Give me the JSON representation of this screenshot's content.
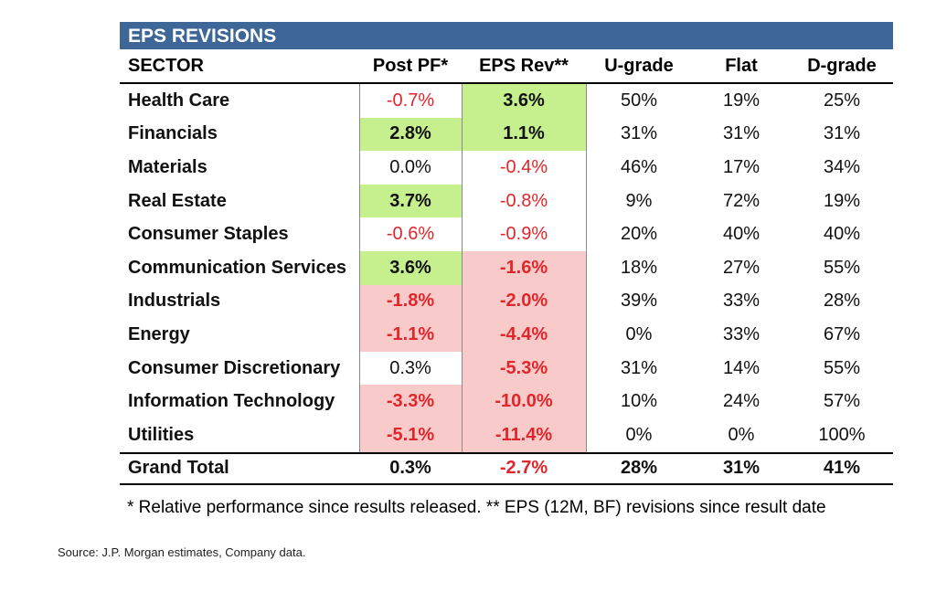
{
  "chart_data": {
    "type": "table",
    "title": "EPS REVISIONS",
    "columns": [
      "SECTOR",
      "Post PF*",
      "EPS Rev**",
      "U-grade",
      "Flat",
      "D-grade"
    ],
    "rows": [
      {
        "sector": "Health Care",
        "post_pf": "-0.7%",
        "eps_rev": "3.6%",
        "u_grade": "50%",
        "flat": "19%",
        "d_grade": "25%",
        "post_pf_value": -0.7,
        "eps_rev_value": 3.6,
        "post_pf_fill": "none",
        "eps_rev_fill": "green",
        "post_pf_bold": false,
        "eps_rev_bold": true
      },
      {
        "sector": "Financials",
        "post_pf": "2.8%",
        "eps_rev": "1.1%",
        "u_grade": "31%",
        "flat": "31%",
        "d_grade": "31%",
        "post_pf_value": 2.8,
        "eps_rev_value": 1.1,
        "post_pf_fill": "green",
        "eps_rev_fill": "green",
        "post_pf_bold": true,
        "eps_rev_bold": true
      },
      {
        "sector": "Materials",
        "post_pf": "0.0%",
        "eps_rev": "-0.4%",
        "u_grade": "46%",
        "flat": "17%",
        "d_grade": "34%",
        "post_pf_value": 0.0,
        "eps_rev_value": -0.4,
        "post_pf_fill": "none",
        "eps_rev_fill": "none",
        "post_pf_bold": false,
        "eps_rev_bold": false
      },
      {
        "sector": "Real Estate",
        "post_pf": "3.7%",
        "eps_rev": "-0.8%",
        "u_grade": "9%",
        "flat": "72%",
        "d_grade": "19%",
        "post_pf_value": 3.7,
        "eps_rev_value": -0.8,
        "post_pf_fill": "green",
        "eps_rev_fill": "none",
        "post_pf_bold": true,
        "eps_rev_bold": false
      },
      {
        "sector": "Consumer Staples",
        "post_pf": "-0.6%",
        "eps_rev": "-0.9%",
        "u_grade": "20%",
        "flat": "40%",
        "d_grade": "40%",
        "post_pf_value": -0.6,
        "eps_rev_value": -0.9,
        "post_pf_fill": "none",
        "eps_rev_fill": "none",
        "post_pf_bold": false,
        "eps_rev_bold": false
      },
      {
        "sector": "Communication Services",
        "post_pf": "3.6%",
        "eps_rev": "-1.6%",
        "u_grade": "18%",
        "flat": "27%",
        "d_grade": "55%",
        "post_pf_value": 3.6,
        "eps_rev_value": -1.6,
        "post_pf_fill": "green",
        "eps_rev_fill": "red",
        "post_pf_bold": true,
        "eps_rev_bold": true
      },
      {
        "sector": "Industrials",
        "post_pf": "-1.8%",
        "eps_rev": "-2.0%",
        "u_grade": "39%",
        "flat": "33%",
        "d_grade": "28%",
        "post_pf_value": -1.8,
        "eps_rev_value": -2.0,
        "post_pf_fill": "red",
        "eps_rev_fill": "red",
        "post_pf_bold": true,
        "eps_rev_bold": true
      },
      {
        "sector": "Energy",
        "post_pf": "-1.1%",
        "eps_rev": "-4.4%",
        "u_grade": "0%",
        "flat": "33%",
        "d_grade": "67%",
        "post_pf_value": -1.1,
        "eps_rev_value": -4.4,
        "post_pf_fill": "red",
        "eps_rev_fill": "red",
        "post_pf_bold": true,
        "eps_rev_bold": true
      },
      {
        "sector": "Consumer Discretionary",
        "post_pf": "0.3%",
        "eps_rev": "-5.3%",
        "u_grade": "31%",
        "flat": "14%",
        "d_grade": "55%",
        "post_pf_value": 0.3,
        "eps_rev_value": -5.3,
        "post_pf_fill": "none",
        "eps_rev_fill": "red",
        "post_pf_bold": false,
        "eps_rev_bold": true
      },
      {
        "sector": "Information Technology",
        "post_pf": "-3.3%",
        "eps_rev": "-10.0%",
        "u_grade": "10%",
        "flat": "24%",
        "d_grade": "57%",
        "post_pf_value": -3.3,
        "eps_rev_value": -10.0,
        "post_pf_fill": "red",
        "eps_rev_fill": "red",
        "post_pf_bold": true,
        "eps_rev_bold": true
      },
      {
        "sector": "Utilities",
        "post_pf": "-5.1%",
        "eps_rev": "-11.4%",
        "u_grade": "0%",
        "flat": "0%",
        "d_grade": "100%",
        "post_pf_value": -5.1,
        "eps_rev_value": -11.4,
        "post_pf_fill": "red",
        "eps_rev_fill": "red",
        "post_pf_bold": true,
        "eps_rev_bold": true
      }
    ],
    "total": {
      "sector": "Grand Total",
      "post_pf": "0.3%",
      "eps_rev": "-2.7%",
      "u_grade": "28%",
      "flat": "31%",
      "d_grade": "41%",
      "post_pf_value": 0.3,
      "eps_rev_value": -2.7
    }
  },
  "footnote": "* Relative performance since results released. ** EPS (12M, BF) revisions since result date",
  "source": "Source: J.P. Morgan estimates, Company data.",
  "colors": {
    "title_bg": "#3e6697",
    "title_text": "#ffffff",
    "positive_fill": "#c6ef8e",
    "negative_fill": "#f8cbca",
    "negative_text": "#e0262b",
    "text": "#111111"
  }
}
